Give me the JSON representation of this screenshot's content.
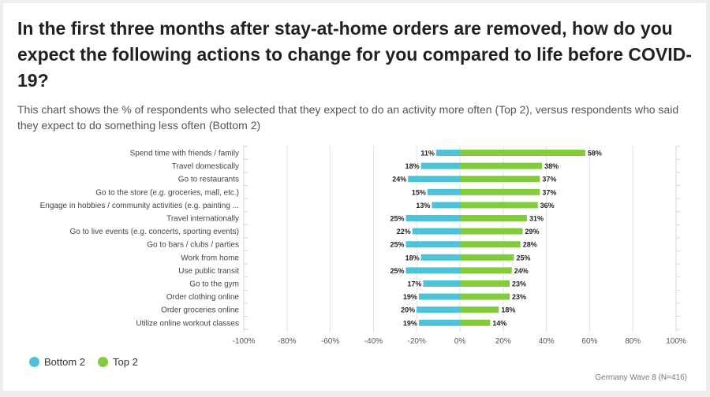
{
  "title": "In the first three months after stay-at-home orders are removed, how do you expect the following actions to change for you compared to life before COVID-19?",
  "subtitle": "This chart shows the % of respondents who selected that they expect to do an activity more often (Top 2), versus respondents who said they expect to do something less often (Bottom 2)",
  "footnote": "Germany Wave 8 (N=416)",
  "colors": {
    "bottom2": "#4ec3d6",
    "top2": "#82cc3b",
    "grid": "#e2e2ea"
  },
  "legend": [
    {
      "label": "Bottom 2",
      "color": "#4ec3d6"
    },
    {
      "label": "Top 2",
      "color": "#82cc3b"
    }
  ],
  "chart_data": {
    "type": "bar",
    "orientation": "horizontal",
    "stacked": "diverging",
    "categories": [
      "Spend time with friends / family",
      "Travel domestically",
      "Go to restaurants",
      "Go to the store (e.g. groceries, mall, etc.)",
      "Engage in hobbies / community activities (e.g. painting ...",
      "Travel internationally",
      "Go to live events (e.g. concerts, sporting events)",
      "Go to bars / clubs / parties",
      "Work from home",
      "Use public transit",
      "Go to the gym",
      "Order clothing online",
      "Order groceries online",
      "Utilize online workout classes"
    ],
    "series": [
      {
        "name": "Bottom 2",
        "values": [
          -11,
          -18,
          -24,
          -15,
          -13,
          -25,
          -22,
          -25,
          -18,
          -25,
          -17,
          -19,
          -20,
          -19
        ],
        "labels": [
          "11%",
          "18%",
          "24%",
          "15%",
          "13%",
          "25%",
          "22%",
          "25%",
          "18%",
          "25%",
          "17%",
          "19%",
          "20%",
          "19%"
        ]
      },
      {
        "name": "Top 2",
        "values": [
          58,
          38,
          37,
          37,
          36,
          31,
          29,
          28,
          25,
          24,
          23,
          23,
          18,
          14
        ],
        "labels": [
          "58%",
          "38%",
          "37%",
          "37%",
          "36%",
          "31%",
          "29%",
          "28%",
          "25%",
          "24%",
          "23%",
          "23%",
          "18%",
          "14%"
        ]
      }
    ],
    "xlim": [
      -100,
      100
    ],
    "xticks": [
      -100,
      -80,
      -60,
      -40,
      -20,
      0,
      20,
      40,
      60,
      80,
      100
    ],
    "xtick_labels": [
      "-100%",
      "-80%",
      "-60%",
      "-40%",
      "-20%",
      "0%",
      "20%",
      "40%",
      "60%",
      "80%",
      "100%"
    ],
    "grid": true,
    "legend_position": "bottom-left"
  }
}
